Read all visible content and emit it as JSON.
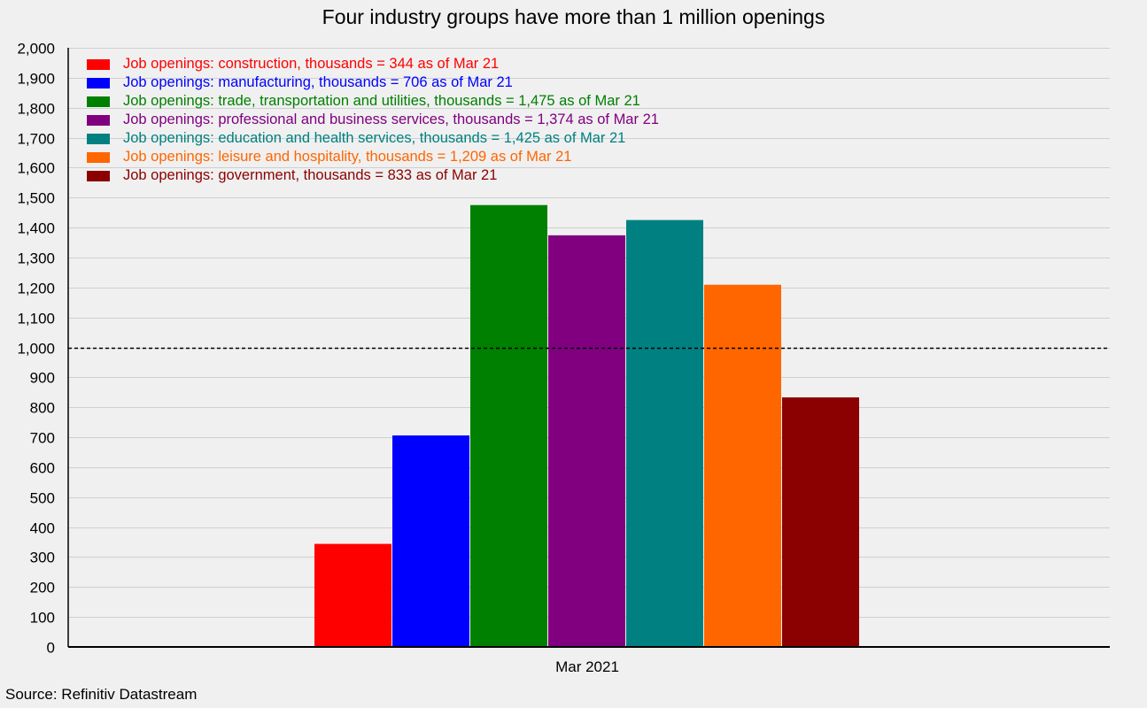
{
  "chart_data": {
    "type": "bar",
    "title": "Four industry groups have more than 1 million openings",
    "source": "Source: Refinitiv Datastream",
    "categories": [
      "Mar 2021"
    ],
    "ylim": [
      0,
      2000
    ],
    "yticks": [
      0,
      100,
      200,
      300,
      400,
      500,
      600,
      700,
      800,
      900,
      1000,
      1100,
      1200,
      1300,
      1400,
      1500,
      1600,
      1700,
      1800,
      1900,
      2000
    ],
    "ytick_labels": [
      "0",
      "100",
      "200",
      "300",
      "400",
      "500",
      "600",
      "700",
      "800",
      "900",
      "1,000",
      "1,100",
      "1,200",
      "1,300",
      "1,400",
      "1,500",
      "1,600",
      "1,700",
      "1,800",
      "1,900",
      "2,000"
    ],
    "grid": true,
    "legend_position": "top-left",
    "reference_line": {
      "value": 1000,
      "style": "dashed",
      "color": "#000000"
    },
    "series": [
      {
        "name": "Job openings: construction, thousands = 344 as of Mar 21",
        "values": [
          344
        ],
        "color": "#ff0000"
      },
      {
        "name": "Job openings: manufacturing, thousands = 706 as of Mar 21",
        "values": [
          706
        ],
        "color": "#0000ff"
      },
      {
        "name": "Job openings: trade, transportation and utilities, thousands = 1,475 as of Mar 21",
        "values": [
          1475
        ],
        "color": "#008000"
      },
      {
        "name": "Job openings: professional and business services, thousands = 1,374 as of Mar 21",
        "values": [
          1374
        ],
        "color": "#800080"
      },
      {
        "name": "Job openings: education and health services, thousands = 1,425 as of Mar 21",
        "values": [
          1425
        ],
        "color": "#008080"
      },
      {
        "name": "Job openings: leisure and hospitality, thousands = 1,209 as of Mar 21",
        "values": [
          1209
        ],
        "color": "#ff6600"
      },
      {
        "name": "Job openings: government, thousands = 833 as of Mar 21",
        "values": [
          833
        ],
        "color": "#8b0000"
      }
    ]
  }
}
